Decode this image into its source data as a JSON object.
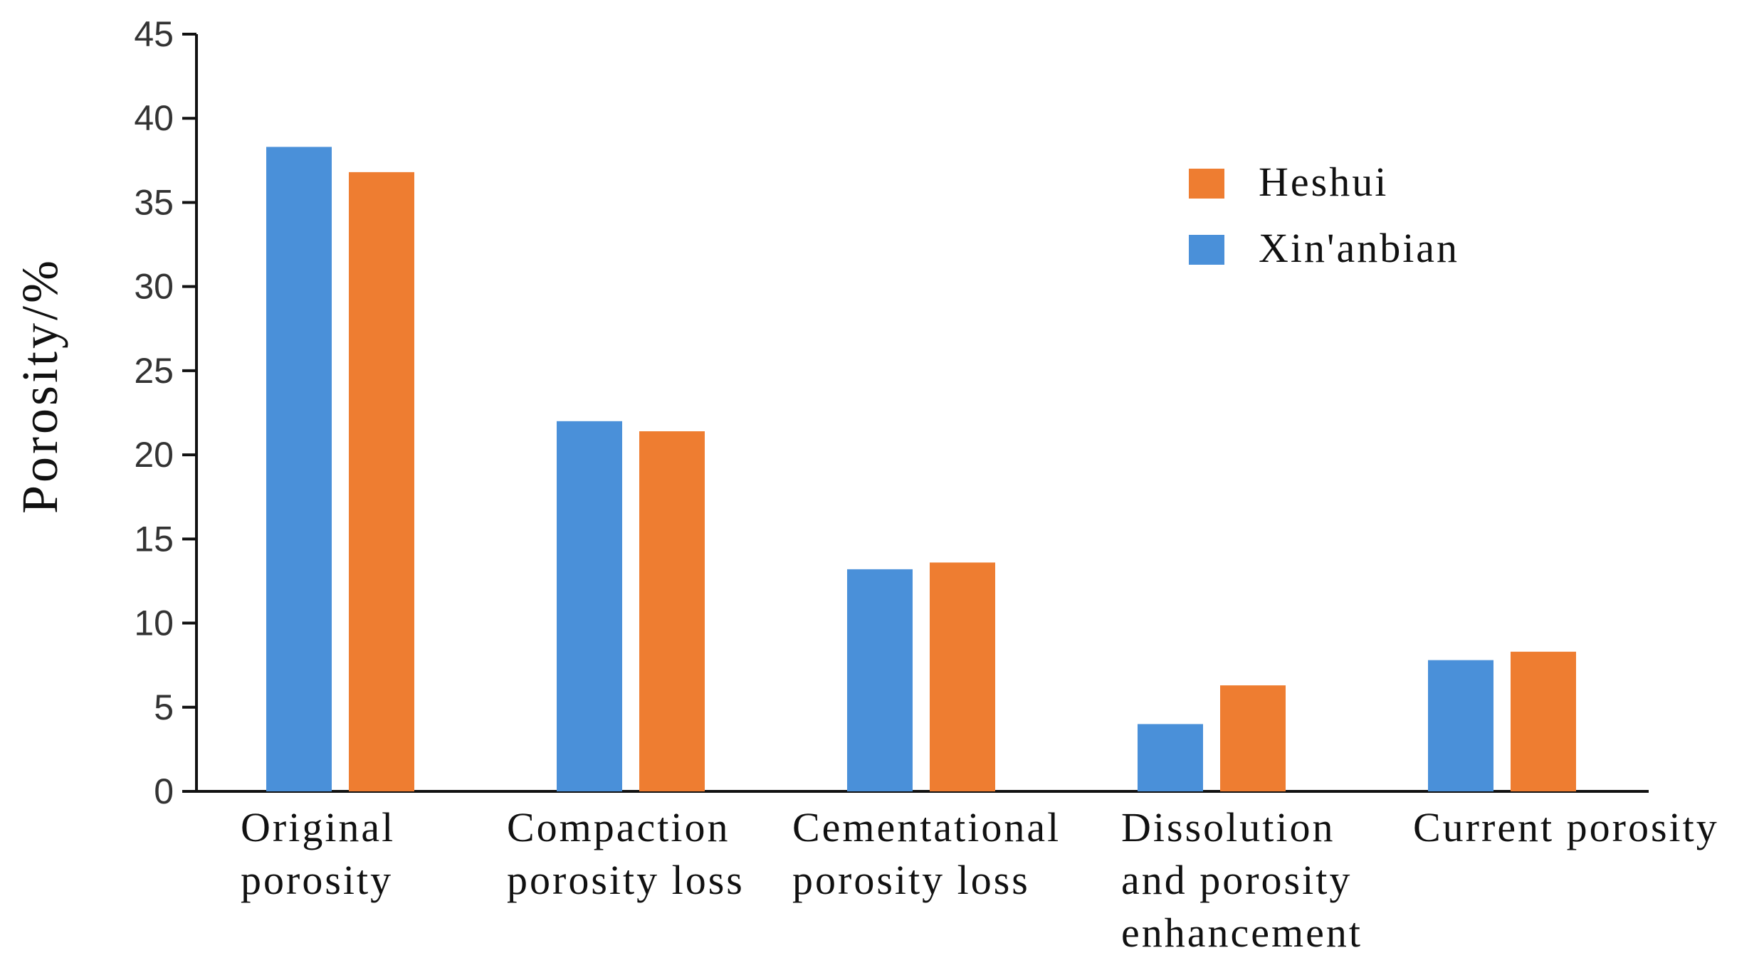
{
  "chart_data": {
    "type": "bar",
    "title": "",
    "xlabel": "",
    "ylabel": "Porosity/%",
    "ylim": [
      0,
      45
    ],
    "yticks": [
      0,
      5,
      10,
      15,
      20,
      25,
      30,
      35,
      40,
      45
    ],
    "grid": false,
    "legend_position": "top-right",
    "categories": [
      [
        "Original",
        "porosity"
      ],
      [
        "Compaction",
        "porosity loss"
      ],
      [
        "Cementational",
        "porosity loss"
      ],
      [
        "Dissolution",
        "and  porosity",
        "enhancement"
      ],
      [
        "Current porosity"
      ]
    ],
    "series": [
      {
        "name": "Xin'anbian",
        "color": "#4a90d9",
        "values": [
          38.3,
          22.0,
          13.2,
          4.0,
          7.8
        ]
      },
      {
        "name": "Heshui",
        "color": "#ee7d31",
        "values": [
          36.8,
          21.4,
          13.6,
          6.3,
          8.3
        ]
      }
    ],
    "legend": [
      "Heshui",
      "Xin'anbian"
    ]
  }
}
